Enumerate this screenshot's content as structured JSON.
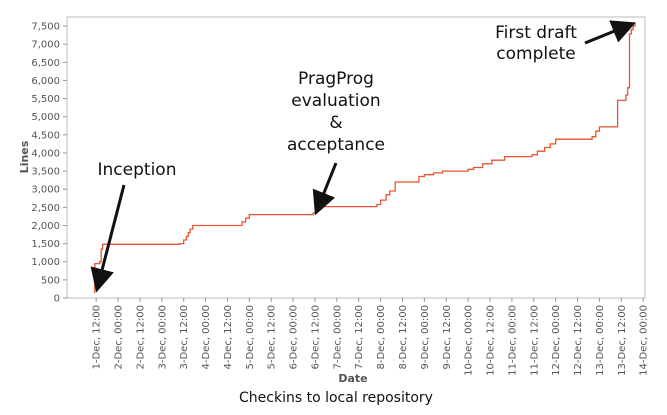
{
  "chart_data": {
    "type": "line",
    "xlabel": "Date",
    "ylabel": "Lines",
    "caption": "Checkins to local repository",
    "ylim": [
      0,
      7750
    ],
    "y_ticks": [
      0,
      500,
      1000,
      1500,
      2000,
      2500,
      3000,
      3500,
      4000,
      4500,
      5000,
      5500,
      6000,
      6500,
      7000,
      7500
    ],
    "y_tick_labels": [
      "0",
      "500",
      "1,000",
      "1,500",
      "2,000",
      "2,500",
      "3,000",
      "3,500",
      "4,000",
      "4,500",
      "5,000",
      "5,500",
      "6,000",
      "6,500",
      "7,000",
      "7,500"
    ],
    "xlim": [
      "2009-11-30T20:00",
      "2009-12-14T01:00"
    ],
    "x_ticks": [
      {
        "t": "2009-12-01T12:00",
        "label": "1-Dec, 12:00"
      },
      {
        "t": "2009-12-02T00:00",
        "label": "2-Dec, 00:00"
      },
      {
        "t": "2009-12-02T12:00",
        "label": "2-Dec, 12:00"
      },
      {
        "t": "2009-12-03T00:00",
        "label": "3-Dec, 00:00"
      },
      {
        "t": "2009-12-03T12:00",
        "label": "3-Dec, 12:00"
      },
      {
        "t": "2009-12-04T00:00",
        "label": "4-Dec, 00:00"
      },
      {
        "t": "2009-12-04T12:00",
        "label": "4-Dec, 12:00"
      },
      {
        "t": "2009-12-05T00:00",
        "label": "5-Dec, 00:00"
      },
      {
        "t": "2009-12-05T12:00",
        "label": "5-Dec, 12:00"
      },
      {
        "t": "2009-12-06T00:00",
        "label": "6-Dec, 00:00"
      },
      {
        "t": "2009-12-06T12:00",
        "label": "6-Dec, 12:00"
      },
      {
        "t": "2009-12-07T00:00",
        "label": "7-Dec, 00:00"
      },
      {
        "t": "2009-12-07T12:00",
        "label": "7-Dec, 12:00"
      },
      {
        "t": "2009-12-08T00:00",
        "label": "8-Dec, 00:00"
      },
      {
        "t": "2009-12-08T12:00",
        "label": "8-Dec, 12:00"
      },
      {
        "t": "2009-12-09T00:00",
        "label": "9-Dec, 00:00"
      },
      {
        "t": "2009-12-09T12:00",
        "label": "9-Dec, 12:00"
      },
      {
        "t": "2009-12-10T00:00",
        "label": "10-Dec, 00:00"
      },
      {
        "t": "2009-12-10T12:00",
        "label": "10-Dec, 12:00"
      },
      {
        "t": "2009-12-11T00:00",
        "label": "11-Dec, 00:00"
      },
      {
        "t": "2009-12-11T12:00",
        "label": "11-Dec, 12:00"
      },
      {
        "t": "2009-12-12T00:00",
        "label": "12-Dec, 00:00"
      },
      {
        "t": "2009-12-12T12:00",
        "label": "12-Dec, 12:00"
      },
      {
        "t": "2009-12-13T00:00",
        "label": "13-Dec, 00:00"
      },
      {
        "t": "2009-12-13T12:00",
        "label": "13-Dec, 12:00"
      },
      {
        "t": "2009-12-14T00:00",
        "label": "14-Dec, 00:00"
      }
    ],
    "series": [
      {
        "color": "#e8552e",
        "step": true,
        "points": [
          [
            "2009-12-01T11:00",
            150
          ],
          [
            "2009-12-01T11:15",
            950
          ],
          [
            "2009-12-01T14:00",
            1000
          ],
          [
            "2009-12-01T14:45",
            1350
          ],
          [
            "2009-12-01T15:30",
            1480
          ],
          [
            "2009-12-03T09:30",
            1500
          ],
          [
            "2009-12-03T12:00",
            1600
          ],
          [
            "2009-12-03T13:30",
            1700
          ],
          [
            "2009-12-03T14:30",
            1800
          ],
          [
            "2009-12-03T15:30",
            1900
          ],
          [
            "2009-12-03T17:00",
            2000
          ],
          [
            "2009-12-04T20:00",
            2100
          ],
          [
            "2009-12-04T22:00",
            2200
          ],
          [
            "2009-12-05T00:00",
            2300
          ],
          [
            "2009-12-06T11:00",
            2350
          ],
          [
            "2009-12-06T13:00",
            2450
          ],
          [
            "2009-12-06T15:00",
            2520
          ],
          [
            "2009-12-07T22:00",
            2580
          ],
          [
            "2009-12-08T00:00",
            2700
          ],
          [
            "2009-12-08T03:00",
            2850
          ],
          [
            "2009-12-08T05:00",
            2950
          ],
          [
            "2009-12-08T08:00",
            3200
          ],
          [
            "2009-12-08T21:00",
            3350
          ],
          [
            "2009-12-09T00:00",
            3400
          ],
          [
            "2009-12-09T05:00",
            3450
          ],
          [
            "2009-12-09T10:00",
            3500
          ],
          [
            "2009-12-10T00:00",
            3550
          ],
          [
            "2009-12-10T03:00",
            3600
          ],
          [
            "2009-12-10T08:00",
            3700
          ],
          [
            "2009-12-10T13:00",
            3800
          ],
          [
            "2009-12-10T20:00",
            3900
          ],
          [
            "2009-12-11T11:00",
            3950
          ],
          [
            "2009-12-11T14:00",
            4050
          ],
          [
            "2009-12-11T18:00",
            4150
          ],
          [
            "2009-12-11T21:00",
            4250
          ],
          [
            "2009-12-12T00:00",
            4380
          ],
          [
            "2009-12-12T20:00",
            4450
          ],
          [
            "2009-12-12T22:00",
            4600
          ],
          [
            "2009-12-13T00:00",
            4720
          ],
          [
            "2009-12-13T10:00",
            5450
          ],
          [
            "2009-12-13T14:30",
            5600
          ],
          [
            "2009-12-13T15:30",
            5800
          ],
          [
            "2009-12-13T16:30",
            7280
          ],
          [
            "2009-12-13T17:30",
            7400
          ],
          [
            "2009-12-13T18:30",
            7500
          ],
          [
            "2009-12-13T19:30",
            7600
          ]
        ]
      }
    ],
    "annotations": [
      {
        "lines": [
          "Inception"
        ],
        "target_t": "2009-12-01T12:00",
        "target_y": 150
      },
      {
        "lines": [
          "PragProg",
          "evaluation",
          "&",
          "acceptance"
        ],
        "target_t": "2009-12-06T12:00",
        "target_y": 2280
      },
      {
        "lines": [
          "First draft",
          "complete"
        ],
        "target_t": "2009-12-13T20:00",
        "target_y": 7600
      }
    ],
    "grid": false
  }
}
